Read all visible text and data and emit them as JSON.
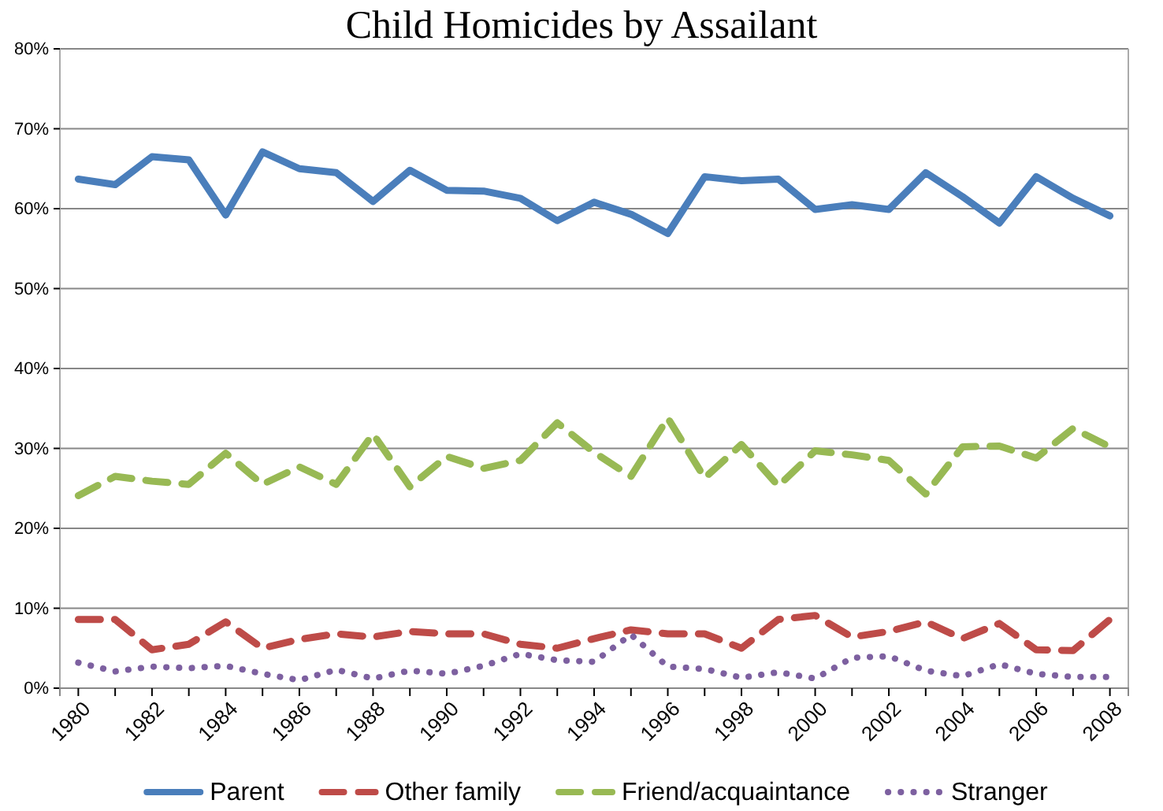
{
  "chart_data": {
    "type": "line",
    "title": "Child Homicides by Assailant",
    "categories": [
      "1980",
      null,
      "1982",
      null,
      "1984",
      null,
      "1986",
      null,
      "1988",
      null,
      "1990",
      null,
      "1992",
      null,
      "1994",
      null,
      "1996",
      null,
      "1998",
      null,
      "2000",
      null,
      "2002",
      null,
      "2004",
      null,
      "2006",
      null,
      "2008"
    ],
    "series": [
      {
        "name": "Parent",
        "color": "#4a7ebb",
        "line_style": "solid",
        "values": [
          63.7,
          63.0,
          66.5,
          66.1,
          59.2,
          67.1,
          65.0,
          64.5,
          60.9,
          64.8,
          62.3,
          62.2,
          61.3,
          58.5,
          60.8,
          59.3,
          56.9,
          64.0,
          63.5,
          63.7,
          59.9,
          60.5,
          59.9,
          64.5,
          61.5,
          58.2,
          64.0,
          61.3,
          59.1
        ]
      },
      {
        "name": "Other family",
        "color": "#be4b48",
        "line_style": "dashed",
        "values": [
          8.6,
          8.6,
          4.8,
          5.5,
          8.3,
          5.0,
          6.1,
          6.8,
          6.4,
          7.1,
          6.8,
          6.8,
          5.5,
          5.0,
          6.2,
          7.3,
          6.8,
          6.8,
          5.0,
          8.6,
          9.1,
          6.4,
          7.1,
          8.3,
          6.2,
          8.1,
          4.8,
          4.7,
          8.6
        ]
      },
      {
        "name": "Friend/acquaintance",
        "color": "#98b954",
        "line_style": "dashed",
        "values": [
          24.1,
          26.5,
          25.9,
          25.5,
          29.4,
          25.5,
          27.7,
          25.5,
          31.8,
          25.2,
          29.0,
          27.5,
          28.5,
          33.2,
          29.5,
          26.5,
          33.8,
          26.3,
          30.5,
          25.3,
          29.7,
          29.2,
          28.5,
          24.3,
          30.2,
          30.3,
          28.8,
          32.5,
          30.2
        ]
      },
      {
        "name": "Stranger",
        "color": "#7d60a0",
        "line_style": "dotted",
        "values": [
          3.2,
          2.1,
          2.7,
          2.5,
          2.8,
          1.8,
          1.0,
          2.3,
          1.2,
          2.2,
          1.8,
          2.8,
          4.3,
          3.5,
          3.3,
          6.7,
          2.7,
          2.4,
          1.3,
          2.0,
          1.2,
          3.8,
          4.0,
          2.2,
          1.5,
          3.0,
          1.8,
          1.4,
          1.4
        ]
      }
    ],
    "ylim": [
      0,
      80
    ],
    "yticks": [
      {
        "value": 0,
        "label": "0%"
      },
      {
        "value": 10,
        "label": "10%"
      },
      {
        "value": 20,
        "label": "20%"
      },
      {
        "value": 30,
        "label": "30%"
      },
      {
        "value": 40,
        "label": "40%"
      },
      {
        "value": 50,
        "label": "50%"
      },
      {
        "value": 60,
        "label": "60%"
      },
      {
        "value": 70,
        "label": "70%"
      },
      {
        "value": 80,
        "label": "80%"
      }
    ],
    "grid": "y",
    "legend": "bottom"
  }
}
